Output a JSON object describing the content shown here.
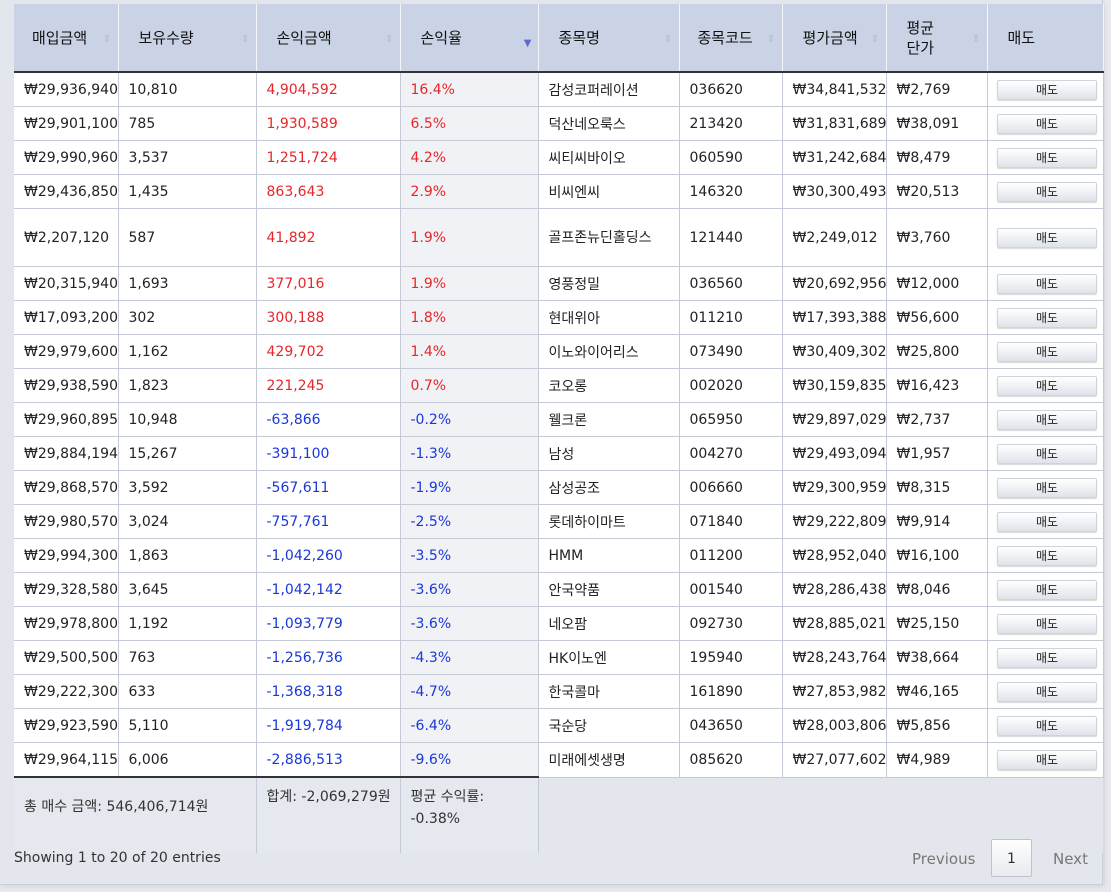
{
  "columns": [
    {
      "label": "매입금액"
    },
    {
      "label": "보유수량"
    },
    {
      "label": "손익금액"
    },
    {
      "label": "손익율"
    },
    {
      "label": "종목명"
    },
    {
      "label": "종목코드"
    },
    {
      "label": "평가금액"
    },
    {
      "label": "평균단가"
    },
    {
      "label": "매도"
    }
  ],
  "sell_label": "매도",
  "rows": [
    {
      "buy": "₩29,936,940",
      "qty": "10,810",
      "pl": "4,904,592",
      "rate": "16.4%",
      "name": "감성코퍼레이션",
      "code": "036620",
      "eval": "₩34,841,532",
      "avg": "₩2,769",
      "dir": "pos"
    },
    {
      "buy": "₩29,901,100",
      "qty": "785",
      "pl": "1,930,589",
      "rate": "6.5%",
      "name": "덕산네오룩스",
      "code": "213420",
      "eval": "₩31,831,689",
      "avg": "₩38,091",
      "dir": "pos"
    },
    {
      "buy": "₩29,990,960",
      "qty": "3,537",
      "pl": "1,251,724",
      "rate": "4.2%",
      "name": "씨티씨바이오",
      "code": "060590",
      "eval": "₩31,242,684",
      "avg": "₩8,479",
      "dir": "pos"
    },
    {
      "buy": "₩29,436,850",
      "qty": "1,435",
      "pl": "863,643",
      "rate": "2.9%",
      "name": "비씨엔씨",
      "code": "146320",
      "eval": "₩30,300,493",
      "avg": "₩20,513",
      "dir": "pos"
    },
    {
      "buy": "₩2,207,120",
      "qty": "587",
      "pl": "41,892",
      "rate": "1.9%",
      "name": "골프존뉴딘홀딩스",
      "code": "121440",
      "eval": "₩2,249,012",
      "avg": "₩3,760",
      "dir": "pos",
      "tall": true
    },
    {
      "buy": "₩20,315,940",
      "qty": "1,693",
      "pl": "377,016",
      "rate": "1.9%",
      "name": "영풍정밀",
      "code": "036560",
      "eval": "₩20,692,956",
      "avg": "₩12,000",
      "dir": "pos"
    },
    {
      "buy": "₩17,093,200",
      "qty": "302",
      "pl": "300,188",
      "rate": "1.8%",
      "name": "현대위아",
      "code": "011210",
      "eval": "₩17,393,388",
      "avg": "₩56,600",
      "dir": "pos"
    },
    {
      "buy": "₩29,979,600",
      "qty": "1,162",
      "pl": "429,702",
      "rate": "1.4%",
      "name": "이노와이어리스",
      "code": "073490",
      "eval": "₩30,409,302",
      "avg": "₩25,800",
      "dir": "pos"
    },
    {
      "buy": "₩29,938,590",
      "qty": "1,823",
      "pl": "221,245",
      "rate": "0.7%",
      "name": "코오롱",
      "code": "002020",
      "eval": "₩30,159,835",
      "avg": "₩16,423",
      "dir": "pos"
    },
    {
      "buy": "₩29,960,895",
      "qty": "10,948",
      "pl": "-63,866",
      "rate": "-0.2%",
      "name": "웰크론",
      "code": "065950",
      "eval": "₩29,897,029",
      "avg": "₩2,737",
      "dir": "neg"
    },
    {
      "buy": "₩29,884,194",
      "qty": "15,267",
      "pl": "-391,100",
      "rate": "-1.3%",
      "name": "남성",
      "code": "004270",
      "eval": "₩29,493,094",
      "avg": "₩1,957",
      "dir": "neg"
    },
    {
      "buy": "₩29,868,570",
      "qty": "3,592",
      "pl": "-567,611",
      "rate": "-1.9%",
      "name": "삼성공조",
      "code": "006660",
      "eval": "₩29,300,959",
      "avg": "₩8,315",
      "dir": "neg"
    },
    {
      "buy": "₩29,980,570",
      "qty": "3,024",
      "pl": "-757,761",
      "rate": "-2.5%",
      "name": "롯데하이마트",
      "code": "071840",
      "eval": "₩29,222,809",
      "avg": "₩9,914",
      "dir": "neg"
    },
    {
      "buy": "₩29,994,300",
      "qty": "1,863",
      "pl": "-1,042,260",
      "rate": "-3.5%",
      "name": "HMM",
      "code": "011200",
      "eval": "₩28,952,040",
      "avg": "₩16,100",
      "dir": "neg"
    },
    {
      "buy": "₩29,328,580",
      "qty": "3,645",
      "pl": "-1,042,142",
      "rate": "-3.6%",
      "name": "안국약품",
      "code": "001540",
      "eval": "₩28,286,438",
      "avg": "₩8,046",
      "dir": "neg"
    },
    {
      "buy": "₩29,978,800",
      "qty": "1,192",
      "pl": "-1,093,779",
      "rate": "-3.6%",
      "name": "네오팜",
      "code": "092730",
      "eval": "₩28,885,021",
      "avg": "₩25,150",
      "dir": "neg"
    },
    {
      "buy": "₩29,500,500",
      "qty": "763",
      "pl": "-1,256,736",
      "rate": "-4.3%",
      "name": "HK이노엔",
      "code": "195940",
      "eval": "₩28,243,764",
      "avg": "₩38,664",
      "dir": "neg"
    },
    {
      "buy": "₩29,222,300",
      "qty": "633",
      "pl": "-1,368,318",
      "rate": "-4.7%",
      "name": "한국콜마",
      "code": "161890",
      "eval": "₩27,853,982",
      "avg": "₩46,165",
      "dir": "neg"
    },
    {
      "buy": "₩29,923,590",
      "qty": "5,110",
      "pl": "-1,919,784",
      "rate": "-6.4%",
      "name": "국순당",
      "code": "043650",
      "eval": "₩28,003,806",
      "avg": "₩5,856",
      "dir": "neg"
    },
    {
      "buy": "₩29,964,115",
      "qty": "6,006",
      "pl": "-2,886,513",
      "rate": "-9.6%",
      "name": "미래에셋생명",
      "code": "085620",
      "eval": "₩27,077,602",
      "avg": "₩4,989",
      "dir": "neg"
    }
  ],
  "footer": {
    "total_buy": "총 매수 금액: 546,406,714원",
    "total_pl": "합계: -2,069,279원",
    "avg_rate": "평균 수익률: -0.38%"
  },
  "info": "Showing 1 to 20 of 20 entries",
  "pagination": {
    "previous": "Previous",
    "page": "1",
    "next": "Next"
  },
  "colors": {
    "positive": "#e8262a",
    "negative": "#1a37d8",
    "header": "#c9d3e5"
  }
}
